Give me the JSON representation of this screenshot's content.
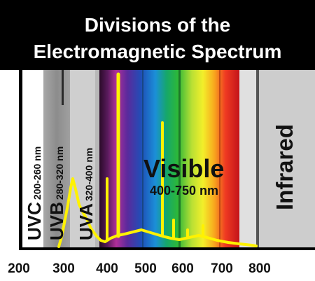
{
  "title": {
    "line1": "Divisions of the",
    "line2": "Electromagnetic Spectrum"
  },
  "bands": {
    "uvc": {
      "name": "UVC",
      "range": "200-260 nm"
    },
    "uvb": {
      "name": "UVB",
      "range": "280-320 nm"
    },
    "uva": {
      "name": "UVA",
      "range": "320-400 nm"
    },
    "visible": {
      "name": "Visible",
      "range": "400-750 nm"
    },
    "infrared": {
      "name": "Infrared"
    }
  },
  "axis": {
    "ticks": [
      "200",
      "300",
      "400",
      "500",
      "600",
      "700",
      "800"
    ]
  },
  "colors": {
    "header": "#000000",
    "uvc": "#ffffff",
    "uvb": "#9a9a9a",
    "uva": "#cfcfcf",
    "infrared": "#cdcdcd",
    "curve": "#fff200"
  }
}
